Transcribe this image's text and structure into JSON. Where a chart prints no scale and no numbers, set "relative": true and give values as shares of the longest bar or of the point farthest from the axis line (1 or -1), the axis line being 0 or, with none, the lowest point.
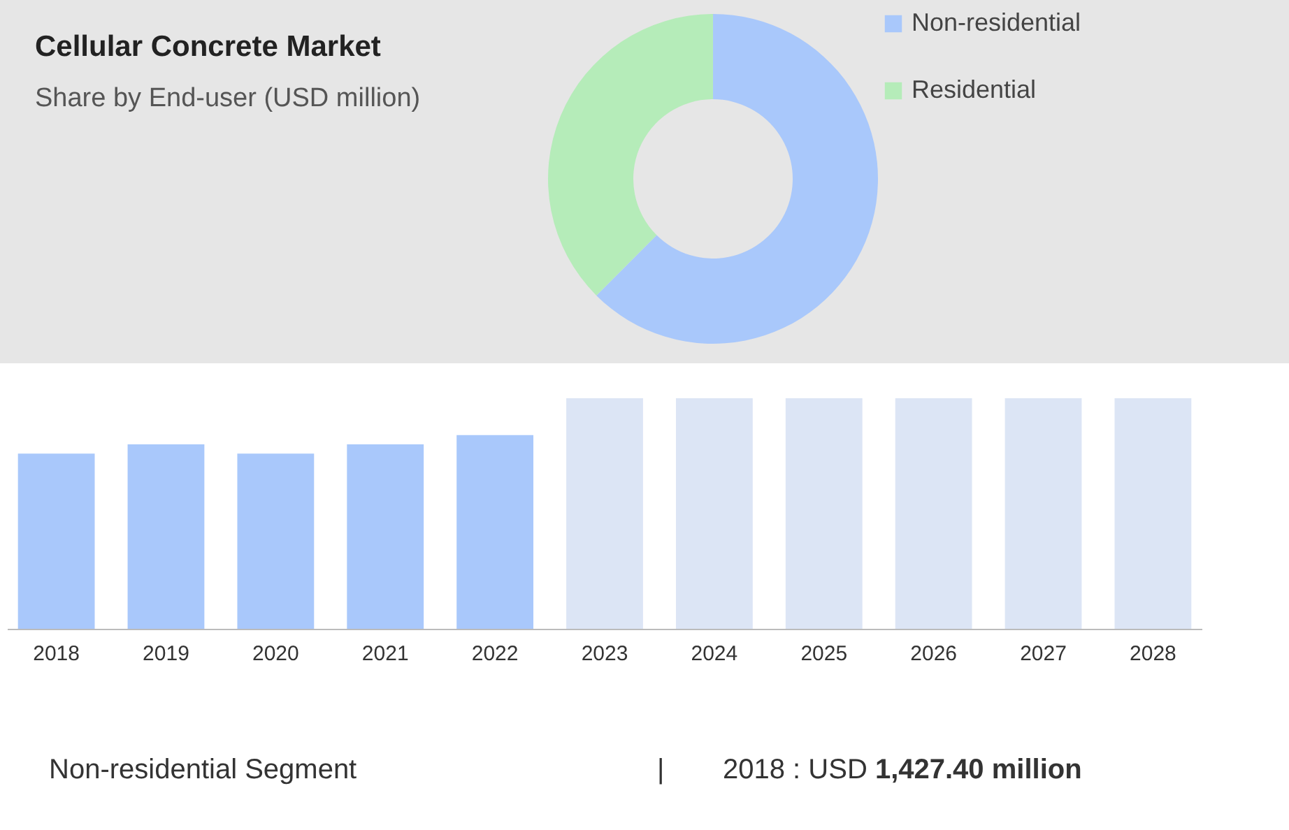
{
  "chart_data": [
    {
      "type": "donut",
      "title": "Cellular Concrete Market",
      "subtitle": "Share by End-user (USD million)",
      "categories": [
        "Non-residential",
        "Residential"
      ],
      "values": [
        62.5,
        37.5
      ],
      "colors": [
        "#a9c8fb",
        "#b5ecb9"
      ],
      "legend": "top right"
    },
    {
      "type": "bar",
      "relative": true,
      "categories": [
        "2018",
        "2019",
        "2020",
        "2021",
        "2022",
        "2023",
        "2024",
        "2025",
        "2026",
        "2027",
        "2028"
      ],
      "series": [
        {
          "color": "#a9c8fb",
          "values": [
            0.76,
            0.8,
            0.76,
            0.8,
            0.84,
            null,
            null,
            null,
            null,
            null,
            null
          ]
        },
        {
          "color": "#dce5f5",
          "values": [
            null,
            null,
            null,
            null,
            null,
            1,
            1,
            1,
            1,
            1,
            1
          ]
        }
      ],
      "annotations": [
        "Non-residential Segment",
        "|",
        "2018 : USD 1,427.40 million"
      ]
    }
  ]
}
